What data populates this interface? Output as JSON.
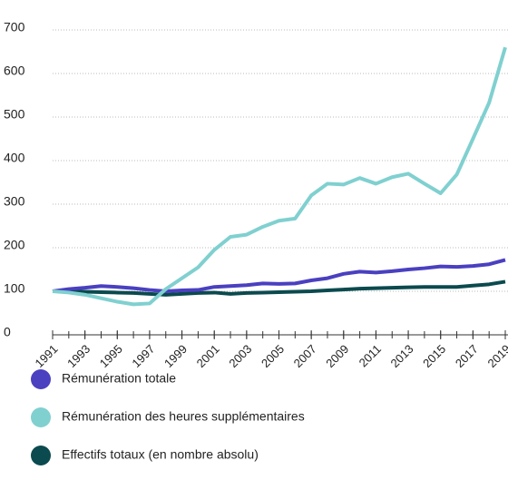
{
  "chart_data": {
    "type": "line",
    "x": [
      1991,
      1992,
      1993,
      1994,
      1995,
      1996,
      1997,
      1998,
      1999,
      2000,
      2001,
      2002,
      2003,
      2004,
      2005,
      2006,
      2007,
      2008,
      2009,
      2010,
      2011,
      2012,
      2013,
      2014,
      2015,
      2016,
      2017,
      2018,
      2019
    ],
    "series": [
      {
        "name": "Rémunération totale",
        "color": "#4a40c0",
        "values": [
          100,
          105,
          108,
          112,
          110,
          107,
          103,
          100,
          102,
          103,
          110,
          112,
          114,
          118,
          117,
          118,
          125,
          130,
          140,
          145,
          143,
          146,
          150,
          153,
          157,
          156,
          158,
          162,
          172
        ]
      },
      {
        "name": "Rémunération des heures supplémentaires",
        "color": "#80d0d0",
        "values": [
          100,
          97,
          92,
          84,
          76,
          70,
          72,
          105,
          130,
          155,
          195,
          225,
          230,
          248,
          262,
          267,
          320,
          347,
          345,
          360,
          347,
          362,
          370,
          347,
          325,
          368,
          450,
          533,
          660
        ]
      },
      {
        "name": "Effectifs totaux (en nombre absolu)",
        "color": "#0b4a4e",
        "values": [
          100,
          100,
          99,
          98,
          97,
          96,
          94,
          92,
          94,
          96,
          97,
          94,
          96,
          97,
          98,
          99,
          100,
          102,
          104,
          106,
          107,
          108,
          109,
          110,
          110,
          110,
          113,
          116,
          122
        ]
      }
    ],
    "xlim": [
      1991,
      2019
    ],
    "xticks": [
      1991,
      1993,
      1995,
      1997,
      1999,
      2001,
      2003,
      2005,
      2007,
      2009,
      2011,
      2013,
      2015,
      2017,
      2019
    ],
    "ylim": [
      0,
      700
    ],
    "yticks": [
      0,
      100,
      200,
      300,
      400,
      500,
      600,
      700
    ],
    "grid": true
  }
}
